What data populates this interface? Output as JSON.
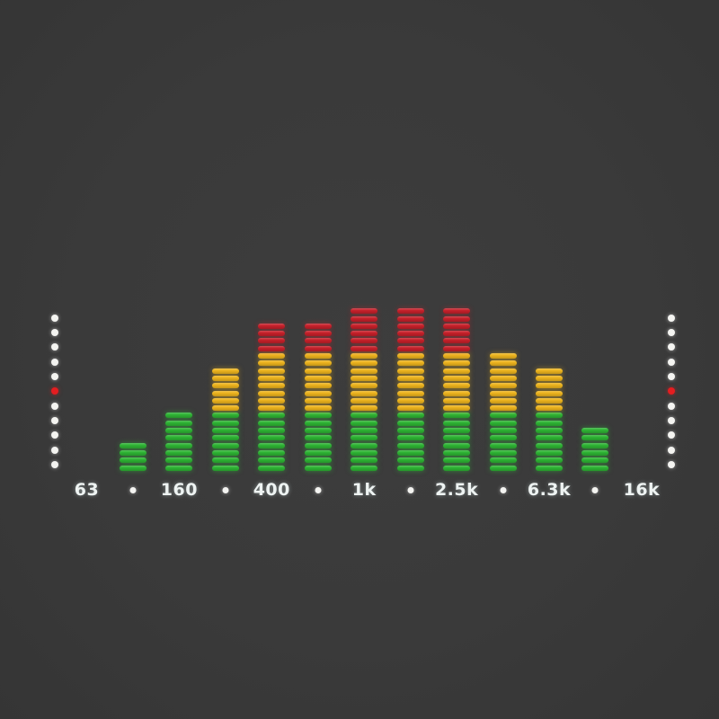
{
  "display": {
    "description": "LED music spectrum analyzer display on dark panel",
    "background": "#3a3a3a"
  },
  "colors": {
    "green": "#2eb434",
    "yellow": "#edb41e",
    "red": "#c6202a",
    "dot_white": "#f4f4f1",
    "dot_red": "#e41d20",
    "label": "#eef3f2"
  },
  "chart_data": {
    "type": "bar",
    "title": "",
    "categories": [
      "63",
      "•",
      "160",
      "•",
      "400",
      "•",
      "1k",
      "•",
      "2.5k",
      "•",
      "6.3k",
      "•",
      "16k"
    ],
    "values": [
      0,
      4,
      8,
      14,
      20,
      20,
      22,
      22,
      22,
      16,
      14,
      6,
      0
    ],
    "unit": "lit LED segments per frequency band",
    "ylim": [
      0,
      22
    ],
    "max_segments": 22,
    "color_zones": [
      {
        "color_name": "green",
        "rows": [
          0,
          7
        ]
      },
      {
        "color_name": "yellow",
        "rows": [
          8,
          15
        ]
      },
      {
        "color_name": "red",
        "rows": [
          16,
          21
        ]
      }
    ],
    "legend": "none",
    "grid": "off"
  },
  "side_indicators": {
    "dots_per_column": 11,
    "red_dot_index_from_top": 5,
    "columns": [
      "left",
      "right"
    ]
  }
}
